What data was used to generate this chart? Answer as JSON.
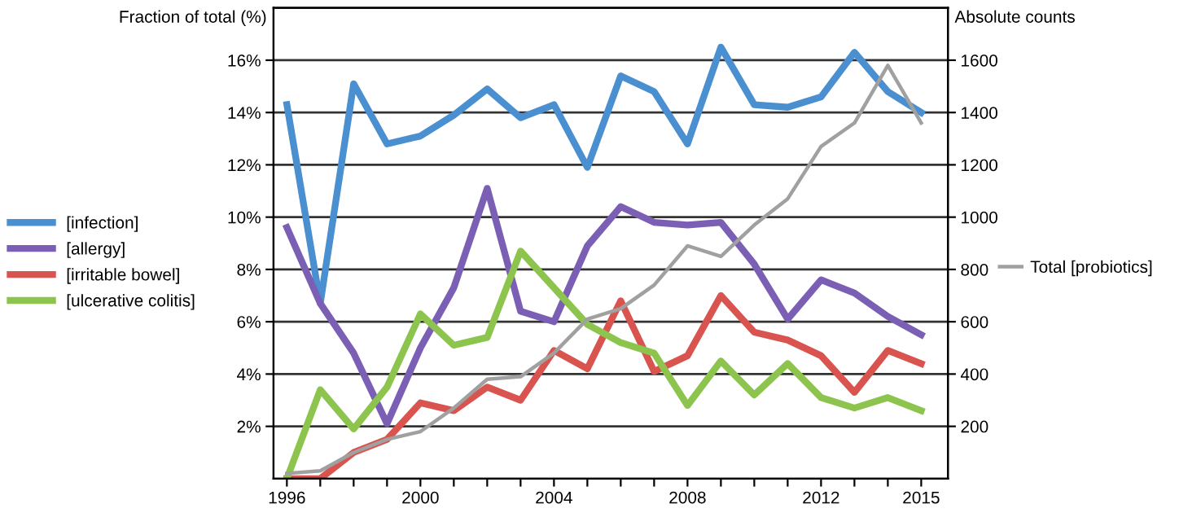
{
  "chart_data": {
    "type": "line",
    "ylabel": "Fraction of total (%)",
    "y2label": "Absolute counts",
    "x": [
      1996,
      1997,
      1998,
      1999,
      2000,
      2001,
      2002,
      2003,
      2004,
      2005,
      2006,
      2007,
      2008,
      2009,
      2010,
      2011,
      2012,
      2013,
      2014,
      2015
    ],
    "xlim": [
      1995.6,
      2015.8
    ],
    "xticks": [
      {
        "value": 1996,
        "label": "1996"
      },
      {
        "value": 1997,
        "label": null
      },
      {
        "value": 1998,
        "label": null
      },
      {
        "value": 1999,
        "label": null
      },
      {
        "value": 2000,
        "label": "2000"
      },
      {
        "value": 2001,
        "label": null
      },
      {
        "value": 2002,
        "label": null
      },
      {
        "value": 2003,
        "label": null
      },
      {
        "value": 2004,
        "label": "2004"
      },
      {
        "value": 2005,
        "label": null
      },
      {
        "value": 2006,
        "label": null
      },
      {
        "value": 2007,
        "label": null
      },
      {
        "value": 2008,
        "label": "2008"
      },
      {
        "value": 2009,
        "label": null
      },
      {
        "value": 2010,
        "label": null
      },
      {
        "value": 2011,
        "label": null
      },
      {
        "value": 2012,
        "label": "2012"
      },
      {
        "value": 2013,
        "label": null
      },
      {
        "value": 2014,
        "label": null
      },
      {
        "value": 2015,
        "label": "2015"
      }
    ],
    "ylim": [
      0,
      18
    ],
    "yticks": [
      {
        "value": 2,
        "label": "2%"
      },
      {
        "value": 4,
        "label": "4%"
      },
      {
        "value": 6,
        "label": "6%"
      },
      {
        "value": 8,
        "label": "8%"
      },
      {
        "value": 10,
        "label": "10%"
      },
      {
        "value": 12,
        "label": "12%"
      },
      {
        "value": 14,
        "label": "14%"
      },
      {
        "value": 16,
        "label": "16%"
      }
    ],
    "y2lim": [
      0,
      1800
    ],
    "y2ticks": [
      200,
      400,
      600,
      800,
      1000,
      1200,
      1400,
      1600
    ],
    "grid": "y",
    "legend": "left",
    "marker": "none",
    "line_style": "solid",
    "series": [
      {
        "name": "[infection]",
        "color": "#4a8fd0",
        "values": [
          14.3,
          6.7,
          15.1,
          12.8,
          13.1,
          13.9,
          14.9,
          13.8,
          14.3,
          11.9,
          15.4,
          14.8,
          12.8,
          16.5,
          14.3,
          14.2,
          14.6,
          16.3,
          14.8,
          14.0
        ]
      },
      {
        "name": "[allergy]",
        "color": "#7b5fb5",
        "values": [
          9.6,
          6.7,
          4.8,
          2.1,
          5.0,
          7.3,
          11.1,
          6.4,
          6.0,
          8.9,
          10.4,
          9.8,
          9.7,
          9.8,
          8.2,
          6.1,
          7.6,
          7.1,
          6.2,
          5.5
        ]
      },
      {
        "name": "[irritable bowel]",
        "color": "#d9534f",
        "values": [
          0,
          0,
          1.0,
          1.5,
          2.9,
          2.6,
          3.5,
          3.0,
          4.9,
          4.2,
          6.8,
          4.1,
          4.7,
          7.0,
          5.6,
          5.3,
          4.7,
          3.3,
          4.9,
          4.4
        ]
      },
      {
        "name": "[ulcerative colitis]",
        "color": "#8dc44d",
        "values": [
          0,
          3.4,
          1.9,
          3.5,
          6.3,
          5.1,
          5.4,
          8.7,
          7.3,
          5.9,
          5.2,
          4.8,
          2.8,
          4.5,
          3.2,
          4.4,
          3.1,
          2.7,
          3.1,
          2.6
        ]
      },
      {
        "name": "Total [probiotics]",
        "color": "#a0a0a0",
        "axis": "y2",
        "values": [
          20,
          30,
          100,
          150,
          180,
          270,
          380,
          390,
          480,
          610,
          650,
          740,
          890,
          850,
          970,
          1070,
          1270,
          1360,
          1580,
          1360
        ]
      }
    ]
  }
}
